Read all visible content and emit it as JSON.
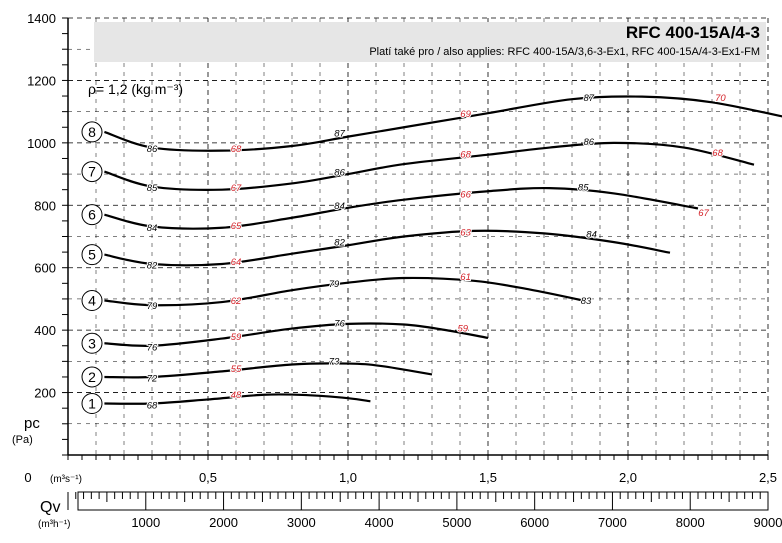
{
  "chart_data": {
    "type": "line",
    "title": "RFC 400-15A/4-3",
    "subtitle": "Platí také pro / also applies: RFC 400-15A/3,6-3-Ex1, RFC 400-15A/4-3-Ex1-FM",
    "density_label": "ρ= 1,2 (kg m⁻³)",
    "ylabel": "pc",
    "ylabel_unit": "(Pa)",
    "xlabel": "Qv",
    "x_unit_m3s": "(m³s⁻¹)",
    "x_unit_m3h": "(m³h⁻¹)",
    "ylim": [
      0,
      1400
    ],
    "xlim": [
      0,
      2.5
    ],
    "yticks": [
      "1400",
      "1200",
      "1000",
      "800",
      "600",
      "400",
      "200"
    ],
    "xticks": [
      "0",
      "0,5",
      "1,0",
      "1,5",
      "2,0",
      "2,5"
    ],
    "xticks_m3h": [
      "1000",
      "2000",
      "3000",
      "4000",
      "5000",
      "6000",
      "7000",
      "8000",
      "9000"
    ],
    "colors": {
      "line": "#000000",
      "efficiency_red": "#d4232a",
      "efficiency_black": "#000000",
      "header_bg": "#e6e6e6",
      "grid": "#000000"
    },
    "series": [
      {
        "name": "1",
        "points": [
          [
            0.13,
            165
          ],
          [
            0.3,
            165
          ],
          [
            0.5,
            178
          ],
          [
            0.7,
            193
          ],
          [
            0.85,
            192
          ],
          [
            1.0,
            182
          ],
          [
            1.08,
            172
          ]
        ],
        "labels": [
          {
            "x": 0.3,
            "y": 158,
            "text": "68",
            "color": "black"
          },
          {
            "x": 0.6,
            "y": 192,
            "text": "48",
            "color": "red"
          }
        ]
      },
      {
        "name": "2",
        "points": [
          [
            0.13,
            250
          ],
          [
            0.3,
            250
          ],
          [
            0.55,
            268
          ],
          [
            0.8,
            290
          ],
          [
            1.0,
            293
          ],
          [
            1.12,
            285
          ],
          [
            1.3,
            258
          ]
        ],
        "labels": [
          {
            "x": 0.3,
            "y": 245,
            "text": "72",
            "color": "black"
          },
          {
            "x": 0.6,
            "y": 275,
            "text": "55",
            "color": "red"
          },
          {
            "x": 0.95,
            "y": 300,
            "text": "73",
            "color": "black"
          }
        ]
      },
      {
        "name": "3",
        "points": [
          [
            0.13,
            358
          ],
          [
            0.3,
            350
          ],
          [
            0.55,
            373
          ],
          [
            0.8,
            405
          ],
          [
            1.0,
            420
          ],
          [
            1.2,
            418
          ],
          [
            1.35,
            400
          ],
          [
            1.5,
            375
          ]
        ],
        "labels": [
          {
            "x": 0.3,
            "y": 345,
            "text": "76",
            "color": "black"
          },
          {
            "x": 0.6,
            "y": 378,
            "text": "59",
            "color": "red"
          },
          {
            "x": 0.97,
            "y": 422,
            "text": "76",
            "color": "black"
          },
          {
            "x": 1.41,
            "y": 405,
            "text": "59",
            "color": "red"
          }
        ]
      },
      {
        "name": "4",
        "points": [
          [
            0.13,
            495
          ],
          [
            0.3,
            480
          ],
          [
            0.55,
            490
          ],
          [
            0.8,
            528
          ],
          [
            1.0,
            552
          ],
          [
            1.2,
            567
          ],
          [
            1.45,
            558
          ],
          [
            1.65,
            530
          ],
          [
            1.85,
            493
          ]
        ],
        "labels": [
          {
            "x": 0.3,
            "y": 477,
            "text": "79",
            "color": "black"
          },
          {
            "x": 0.6,
            "y": 494,
            "text": "62",
            "color": "red"
          },
          {
            "x": 0.95,
            "y": 548,
            "text": "79",
            "color": "black"
          },
          {
            "x": 1.42,
            "y": 570,
            "text": "61",
            "color": "red"
          },
          {
            "x": 1.85,
            "y": 493,
            "text": "83",
            "color": "black"
          }
        ]
      },
      {
        "name": "5",
        "points": [
          [
            0.13,
            642
          ],
          [
            0.3,
            612
          ],
          [
            0.55,
            612
          ],
          [
            0.8,
            645
          ],
          [
            1.0,
            672
          ],
          [
            1.2,
            700
          ],
          [
            1.45,
            718
          ],
          [
            1.7,
            710
          ],
          [
            1.95,
            682
          ],
          [
            2.15,
            648
          ]
        ],
        "labels": [
          {
            "x": 0.3,
            "y": 607,
            "text": "82",
            "color": "black"
          },
          {
            "x": 0.6,
            "y": 618,
            "text": "64",
            "color": "red"
          },
          {
            "x": 0.97,
            "y": 680,
            "text": "82",
            "color": "black"
          },
          {
            "x": 1.42,
            "y": 713,
            "text": "63",
            "color": "red"
          },
          {
            "x": 1.87,
            "y": 707,
            "text": "84",
            "color": "black"
          }
        ]
      },
      {
        "name": "6",
        "points": [
          [
            0.13,
            770
          ],
          [
            0.3,
            732
          ],
          [
            0.55,
            728
          ],
          [
            0.8,
            760
          ],
          [
            1.0,
            792
          ],
          [
            1.2,
            818
          ],
          [
            1.5,
            845
          ],
          [
            1.72,
            855
          ],
          [
            1.95,
            838
          ],
          [
            2.25,
            790
          ]
        ],
        "labels": [
          {
            "x": 0.3,
            "y": 727,
            "text": "84",
            "color": "black"
          },
          {
            "x": 0.6,
            "y": 733,
            "text": "65",
            "color": "red"
          },
          {
            "x": 0.97,
            "y": 797,
            "text": "84",
            "color": "black"
          },
          {
            "x": 1.42,
            "y": 835,
            "text": "66",
            "color": "red"
          },
          {
            "x": 1.84,
            "y": 857,
            "text": "85",
            "color": "black"
          },
          {
            "x": 2.27,
            "y": 775,
            "text": "67",
            "color": "red"
          }
        ]
      },
      {
        "name": "7",
        "points": [
          [
            0.13,
            908
          ],
          [
            0.3,
            860
          ],
          [
            0.55,
            850
          ],
          [
            0.8,
            870
          ],
          [
            1.0,
            900
          ],
          [
            1.2,
            932
          ],
          [
            1.5,
            962
          ],
          [
            1.72,
            985
          ],
          [
            1.95,
            1000
          ],
          [
            2.2,
            985
          ],
          [
            2.45,
            930
          ]
        ],
        "labels": [
          {
            "x": 0.3,
            "y": 855,
            "text": "85",
            "color": "black"
          },
          {
            "x": 0.6,
            "y": 855,
            "text": "67",
            "color": "red"
          },
          {
            "x": 0.97,
            "y": 905,
            "text": "86",
            "color": "black"
          },
          {
            "x": 1.42,
            "y": 962,
            "text": "68",
            "color": "red"
          },
          {
            "x": 1.86,
            "y": 1003,
            "text": "86",
            "color": "black"
          },
          {
            "x": 2.32,
            "y": 968,
            "text": "68",
            "color": "red"
          }
        ]
      },
      {
        "name": "8",
        "points": [
          [
            0.13,
            1035
          ],
          [
            0.3,
            985
          ],
          [
            0.55,
            975
          ],
          [
            0.8,
            990
          ],
          [
            1.0,
            1020
          ],
          [
            1.2,
            1050
          ],
          [
            1.5,
            1095
          ],
          [
            1.8,
            1140
          ],
          [
            2.05,
            1148
          ],
          [
            2.3,
            1130
          ],
          [
            2.6,
            1075
          ]
        ],
        "labels": [
          {
            "x": 0.3,
            "y": 980,
            "text": "86",
            "color": "black"
          },
          {
            "x": 0.6,
            "y": 980,
            "text": "68",
            "color": "red"
          },
          {
            "x": 0.97,
            "y": 1030,
            "text": "87",
            "color": "black"
          },
          {
            "x": 1.42,
            "y": 1093,
            "text": "69",
            "color": "red"
          },
          {
            "x": 1.86,
            "y": 1143,
            "text": "87",
            "color": "black"
          },
          {
            "x": 2.33,
            "y": 1143,
            "text": "70",
            "color": "red"
          }
        ]
      }
    ]
  }
}
